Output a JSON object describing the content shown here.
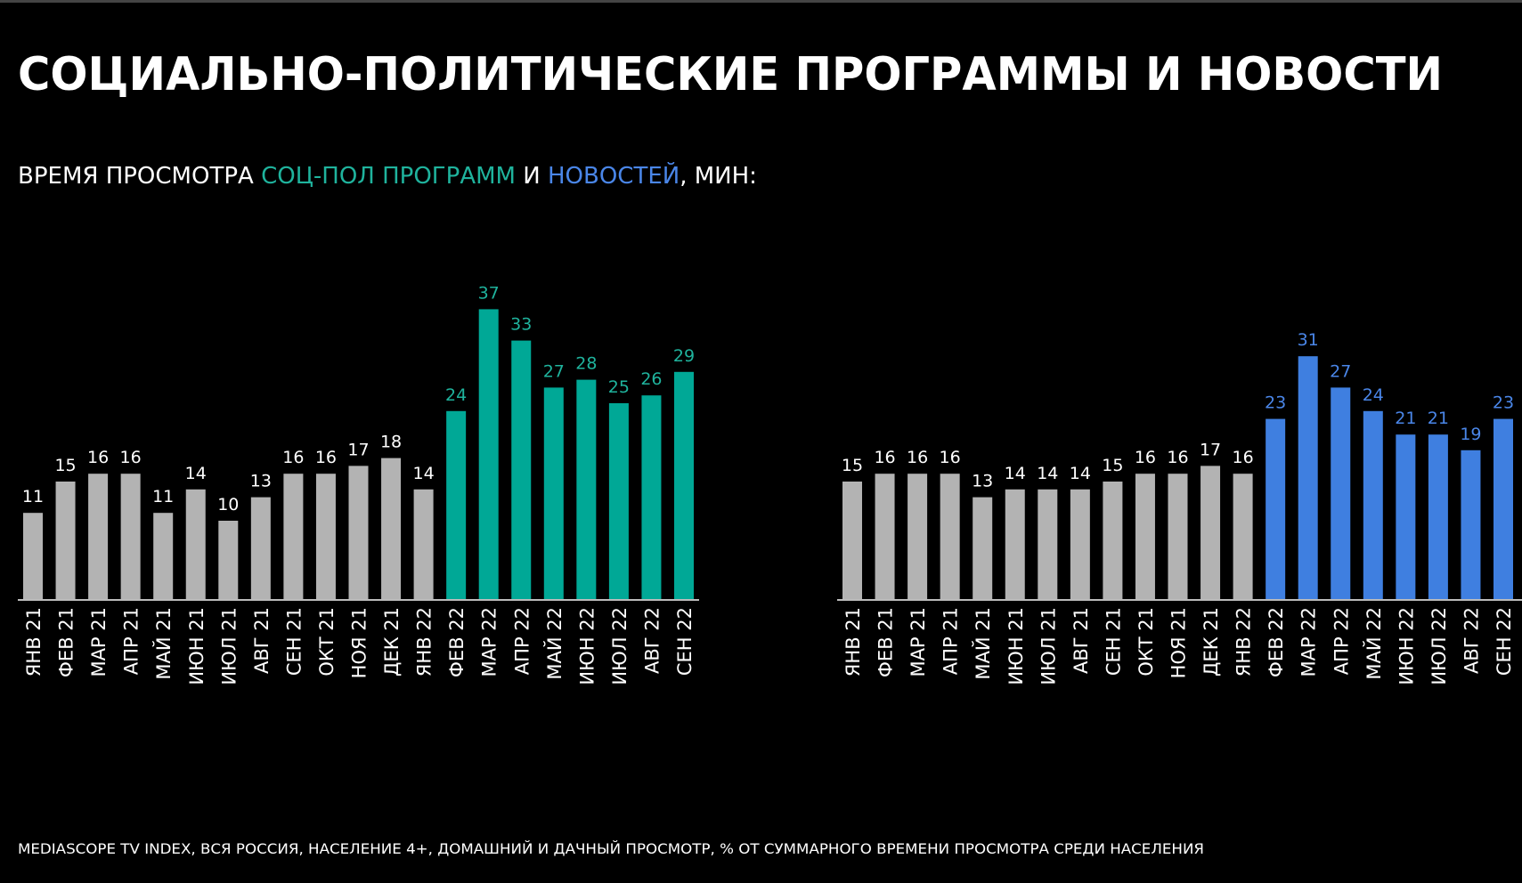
{
  "title": "СОЦИАЛЬНО-ПОЛИТИЧЕСКИЕ ПРОГРАММЫ И НОВОСТИ",
  "subtitle": [
    {
      "text": "ВРЕМЯ ПРОСМОТРА ",
      "color": "#ffffff"
    },
    {
      "text": "СОЦ-ПОЛ ПРОГРАММ",
      "color": "#1fb39d"
    },
    {
      "text": " И ",
      "color": "#ffffff"
    },
    {
      "text": "НОВОСТЕЙ",
      "color": "#4a86e8"
    },
    {
      "text": ", МИН:",
      "color": "#ffffff"
    }
  ],
  "footnote": "MEDIASCOPE TV INDEX, ВСЯ РОССИЯ, НАСЕЛЕНИЕ 4+, ДОМАШНИЙ И ДАЧНЫЙ ПРОСМОТР, % ОТ СУММАРНОГО ВРЕМЕНИ ПРОСМОТРА СРЕДИ НАСЕЛЕНИЯ",
  "chart_data": [
    {
      "type": "bar",
      "categories": [
        "ЯНВ 21",
        "ФЕВ 21",
        "МАР 21",
        "АПР 21",
        "МАЙ 21",
        "ИЮН 21",
        "ИЮЛ 21",
        "АВГ 21",
        "СЕН 21",
        "ОКТ 21",
        "НОЯ 21",
        "ДЕК 21",
        "ЯНВ 22",
        "ФЕВ 22",
        "МАР 22",
        "АПР 22",
        "МАЙ 22",
        "ИЮН 22",
        "ИЮЛ 22",
        "АВГ 22",
        "СЕН 22"
      ],
      "values": [
        11,
        15,
        16,
        16,
        11,
        14,
        10,
        13,
        16,
        16,
        17,
        18,
        14,
        24,
        37,
        33,
        27,
        28,
        25,
        26,
        29
      ],
      "colors": [
        "#b3b3b3",
        "#b3b3b3",
        "#b3b3b3",
        "#b3b3b3",
        "#b3b3b3",
        "#b3b3b3",
        "#b3b3b3",
        "#b3b3b3",
        "#b3b3b3",
        "#b3b3b3",
        "#b3b3b3",
        "#b3b3b3",
        "#b3b3b3",
        "#00a896",
        "#00a896",
        "#00a896",
        "#00a896",
        "#00a896",
        "#00a896",
        "#00a896",
        "#00a896"
      ],
      "label_colors": [
        "#ffffff",
        "#ffffff",
        "#ffffff",
        "#ffffff",
        "#ffffff",
        "#ffffff",
        "#ffffff",
        "#ffffff",
        "#ffffff",
        "#ffffff",
        "#ffffff",
        "#ffffff",
        "#ffffff",
        "#1fb39d",
        "#1fb39d",
        "#1fb39d",
        "#1fb39d",
        "#1fb39d",
        "#1fb39d",
        "#1fb39d",
        "#1fb39d"
      ]
    },
    {
      "type": "bar",
      "categories": [
        "ЯНВ 21",
        "ФЕВ 21",
        "МАР 21",
        "АПР 21",
        "МАЙ 21",
        "ИЮН 21",
        "ИЮЛ 21",
        "АВГ 21",
        "СЕН 21",
        "ОКТ 21",
        "НОЯ 21",
        "ДЕК 21",
        "ЯНВ 22",
        "ФЕВ 22",
        "МАР 22",
        "АПР 22",
        "МАЙ 22",
        "ИЮН 22",
        "ИЮЛ 22",
        "АВГ 22",
        "СЕН 22"
      ],
      "values": [
        15,
        16,
        16,
        16,
        13,
        14,
        14,
        14,
        15,
        16,
        16,
        17,
        16,
        23,
        31,
        27,
        24,
        21,
        21,
        19,
        23
      ],
      "colors": [
        "#b3b3b3",
        "#b3b3b3",
        "#b3b3b3",
        "#b3b3b3",
        "#b3b3b3",
        "#b3b3b3",
        "#b3b3b3",
        "#b3b3b3",
        "#b3b3b3",
        "#b3b3b3",
        "#b3b3b3",
        "#b3b3b3",
        "#b3b3b3",
        "#3f7fe0",
        "#3f7fe0",
        "#3f7fe0",
        "#3f7fe0",
        "#3f7fe0",
        "#3f7fe0",
        "#3f7fe0",
        "#3f7fe0"
      ],
      "label_colors": [
        "#ffffff",
        "#ffffff",
        "#ffffff",
        "#ffffff",
        "#ffffff",
        "#ffffff",
        "#ffffff",
        "#ffffff",
        "#ffffff",
        "#ffffff",
        "#ffffff",
        "#ffffff",
        "#ffffff",
        "#4a86e8",
        "#4a86e8",
        "#4a86e8",
        "#4a86e8",
        "#4a86e8",
        "#4a86e8",
        "#4a86e8",
        "#4a86e8"
      ]
    }
  ]
}
